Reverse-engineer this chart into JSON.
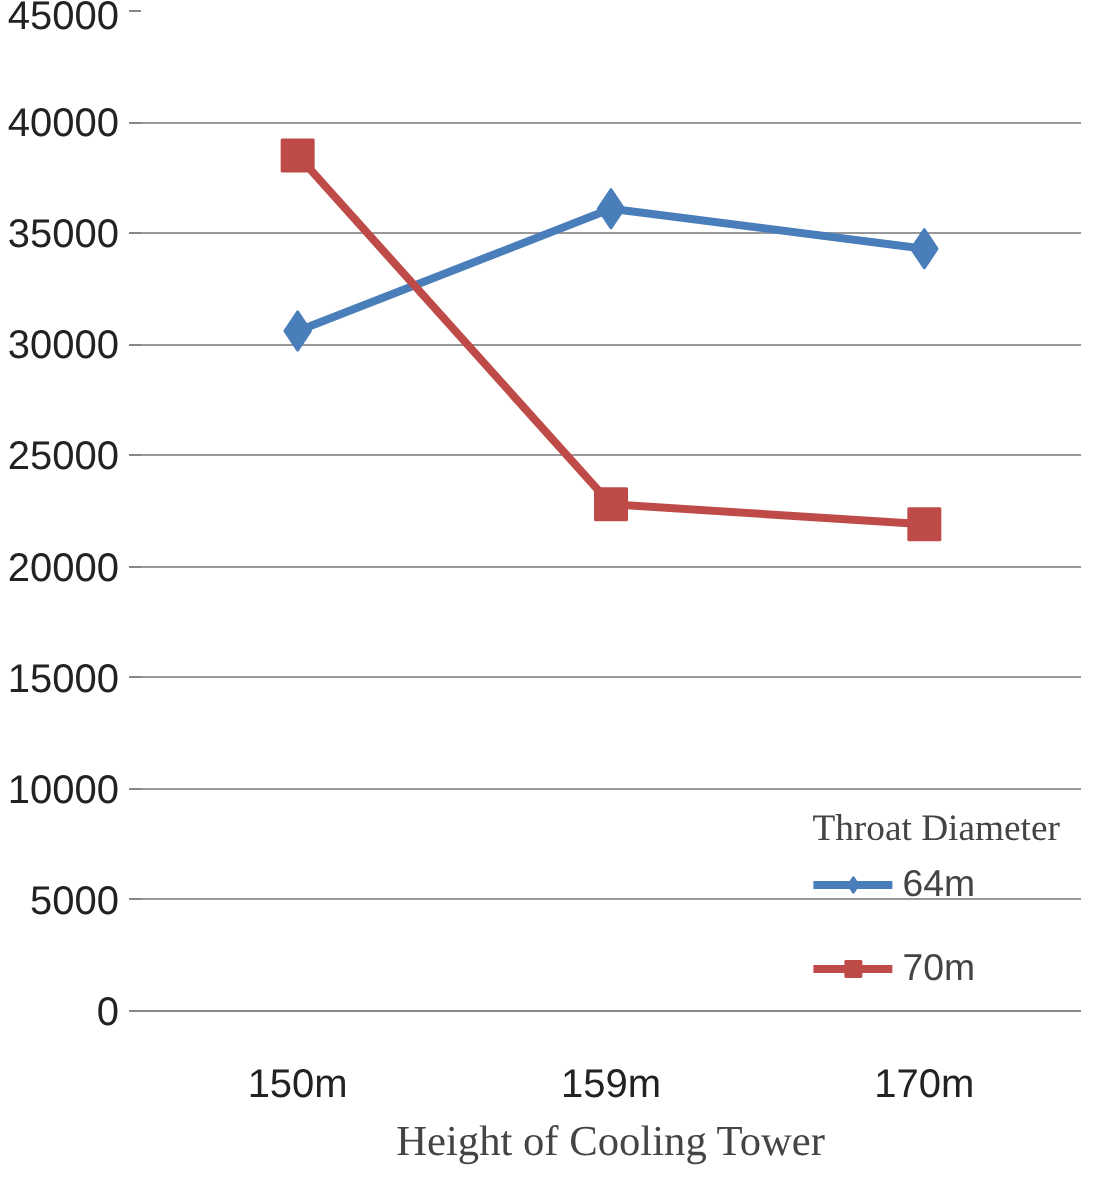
{
  "chart_data": {
    "type": "line",
    "xlabel": "Height of Cooling Tower",
    "legend_title": "Throat Diameter",
    "categories": [
      "150m",
      "159m",
      "170m"
    ],
    "series": [
      {
        "name": "64m",
        "color": "#4a7ebb",
        "marker": "diamond",
        "values": [
          30600,
          36100,
          34300
        ]
      },
      {
        "name": "70m",
        "color": "#be4b48",
        "marker": "square",
        "values": [
          38500,
          22800,
          21900
        ]
      }
    ],
    "ylim": [
      0,
      45000
    ],
    "yticks": [
      0,
      5000,
      10000,
      15000,
      20000,
      25000,
      30000,
      35000,
      40000,
      45000
    ],
    "grid": "y",
    "legend": "bottom right"
  }
}
